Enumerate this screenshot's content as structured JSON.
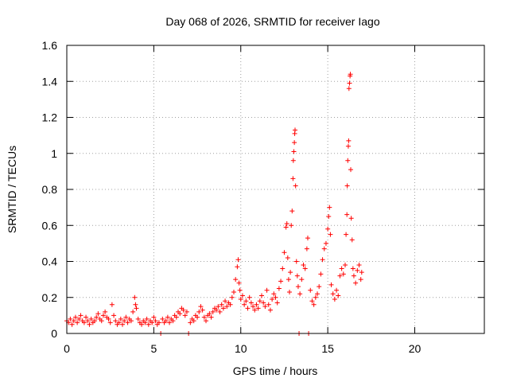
{
  "chart_data": {
    "type": "scatter",
    "title": "Day 068 of 2026, SRMTID for receiver Iago",
    "xlabel": "GPS time / hours",
    "ylabel": "SRMTID / TECUs",
    "xlim": [
      0,
      24
    ],
    "ylim": [
      0,
      1.6
    ],
    "xticks": [
      0,
      5,
      10,
      15,
      20
    ],
    "xtick_labels": [
      "0",
      "5",
      "10",
      "15",
      "20"
    ],
    "yticks": [
      0,
      0.2,
      0.4,
      0.6,
      0.8,
      1.0,
      1.2,
      1.4,
      1.6
    ],
    "ytick_labels": [
      "0",
      "0.2",
      "0.4",
      "0.6",
      "0.8",
      "1",
      "1.2",
      "1.4",
      "1.6"
    ],
    "grid": true,
    "marker": "+",
    "color": "#ff0000",
    "series": [
      {
        "name": "SRMTID",
        "points": [
          [
            0.0,
            0.07
          ],
          [
            0.1,
            0.06
          ],
          [
            0.2,
            0.08
          ],
          [
            0.3,
            0.05
          ],
          [
            0.4,
            0.07
          ],
          [
            0.5,
            0.09
          ],
          [
            0.6,
            0.06
          ],
          [
            0.7,
            0.08
          ],
          [
            0.8,
            0.1
          ],
          [
            0.9,
            0.07
          ],
          [
            1.0,
            0.06
          ],
          [
            1.1,
            0.09
          ],
          [
            1.2,
            0.07
          ],
          [
            1.3,
            0.05
          ],
          [
            1.4,
            0.08
          ],
          [
            1.5,
            0.06
          ],
          [
            1.6,
            0.07
          ],
          [
            1.7,
            0.09
          ],
          [
            1.8,
            0.11
          ],
          [
            1.9,
            0.08
          ],
          [
            2.0,
            0.07
          ],
          [
            2.1,
            0.1
          ],
          [
            2.2,
            0.12
          ],
          [
            2.3,
            0.09
          ],
          [
            2.4,
            0.08
          ],
          [
            2.5,
            0.06
          ],
          [
            2.6,
            0.16
          ],
          [
            2.7,
            0.1
          ],
          [
            2.8,
            0.07
          ],
          [
            2.9,
            0.05
          ],
          [
            3.0,
            0.06
          ],
          [
            3.1,
            0.08
          ],
          [
            3.2,
            0.05
          ],
          [
            3.3,
            0.07
          ],
          [
            3.4,
            0.09
          ],
          [
            3.5,
            0.06
          ],
          [
            3.6,
            0.08
          ],
          [
            3.7,
            0.07
          ],
          [
            3.8,
            0.12
          ],
          [
            3.9,
            0.2
          ],
          [
            3.95,
            0.16
          ],
          [
            4.0,
            0.14
          ],
          [
            4.1,
            0.08
          ],
          [
            4.2,
            0.06
          ],
          [
            4.3,
            0.05
          ],
          [
            4.4,
            0.07
          ],
          [
            4.5,
            0.06
          ],
          [
            4.6,
            0.08
          ],
          [
            4.7,
            0.05
          ],
          [
            4.8,
            0.07
          ],
          [
            4.9,
            0.06
          ],
          [
            5.0,
            0.09
          ],
          [
            5.1,
            0.07
          ],
          [
            5.2,
            0.05
          ],
          [
            5.3,
            0.06
          ],
          [
            5.4,
            0.0
          ],
          [
            5.5,
            0.08
          ],
          [
            5.6,
            0.06
          ],
          [
            5.7,
            0.07
          ],
          [
            5.8,
            0.09
          ],
          [
            5.9,
            0.06
          ],
          [
            6.0,
            0.08
          ],
          [
            6.1,
            0.07
          ],
          [
            6.2,
            0.1
          ],
          [
            6.3,
            0.09
          ],
          [
            6.4,
            0.12
          ],
          [
            6.5,
            0.11
          ],
          [
            6.6,
            0.14
          ],
          [
            6.7,
            0.13
          ],
          [
            6.8,
            0.1
          ],
          [
            6.9,
            0.12
          ],
          [
            7.0,
            0.0
          ],
          [
            7.1,
            0.06
          ],
          [
            7.2,
            0.08
          ],
          [
            7.3,
            0.07
          ],
          [
            7.4,
            0.1
          ],
          [
            7.5,
            0.09
          ],
          [
            7.6,
            0.12
          ],
          [
            7.7,
            0.15
          ],
          [
            7.8,
            0.13
          ],
          [
            7.9,
            0.09
          ],
          [
            8.0,
            0.07
          ],
          [
            8.1,
            0.1
          ],
          [
            8.2,
            0.11
          ],
          [
            8.3,
            0.09
          ],
          [
            8.4,
            0.12
          ],
          [
            8.5,
            0.14
          ],
          [
            8.6,
            0.13
          ],
          [
            8.7,
            0.15
          ],
          [
            8.8,
            0.12
          ],
          [
            8.9,
            0.16
          ],
          [
            9.0,
            0.14
          ],
          [
            9.1,
            0.18
          ],
          [
            9.2,
            0.15
          ],
          [
            9.3,
            0.17
          ],
          [
            9.4,
            0.16
          ],
          [
            9.5,
            0.2
          ],
          [
            9.6,
            0.23
          ],
          [
            9.7,
            0.3
          ],
          [
            9.8,
            0.37
          ],
          [
            9.85,
            0.41
          ],
          [
            9.9,
            0.28
          ],
          [
            9.95,
            0.24
          ],
          [
            10.0,
            0.19
          ],
          [
            10.1,
            0.21
          ],
          [
            10.2,
            0.16
          ],
          [
            10.3,
            0.18
          ],
          [
            10.4,
            0.14
          ],
          [
            10.5,
            0.2
          ],
          [
            10.6,
            0.17
          ],
          [
            10.7,
            0.15
          ],
          [
            10.8,
            0.13
          ],
          [
            10.9,
            0.16
          ],
          [
            11.0,
            0.14
          ],
          [
            11.1,
            0.18
          ],
          [
            11.2,
            0.21
          ],
          [
            11.3,
            0.17
          ],
          [
            11.4,
            0.15
          ],
          [
            11.5,
            0.24
          ],
          [
            11.6,
            0.16
          ],
          [
            11.7,
            0.13
          ],
          [
            11.8,
            0.19
          ],
          [
            11.9,
            0.22
          ],
          [
            12.0,
            0.2
          ],
          [
            12.1,
            0.17
          ],
          [
            12.2,
            0.25
          ],
          [
            12.3,
            0.29
          ],
          [
            12.4,
            0.36
          ],
          [
            12.5,
            0.45
          ],
          [
            12.6,
            0.59
          ],
          [
            12.65,
            0.61
          ],
          [
            12.7,
            0.42
          ],
          [
            12.75,
            0.3
          ],
          [
            12.8,
            0.23
          ],
          [
            12.85,
            0.34
          ],
          [
            12.9,
            0.6
          ],
          [
            12.95,
            0.68
          ],
          [
            13.0,
            0.86
          ],
          [
            13.02,
            0.96
          ],
          [
            13.05,
            1.01
          ],
          [
            13.08,
            1.06
          ],
          [
            13.1,
            1.11
          ],
          [
            13.12,
            1.13
          ],
          [
            13.15,
            0.82
          ],
          [
            13.2,
            0.4
          ],
          [
            13.25,
            0.32
          ],
          [
            13.3,
            0.26
          ],
          [
            13.35,
            0.0
          ],
          [
            13.4,
            0.22
          ],
          [
            13.5,
            0.3
          ],
          [
            13.6,
            0.38
          ],
          [
            13.7,
            0.36
          ],
          [
            13.8,
            0.47
          ],
          [
            13.85,
            0.53
          ],
          [
            13.9,
            0.0
          ],
          [
            14.0,
            0.24
          ],
          [
            14.1,
            0.18
          ],
          [
            14.2,
            0.16
          ],
          [
            14.3,
            0.2
          ],
          [
            14.4,
            0.22
          ],
          [
            14.5,
            0.26
          ],
          [
            14.6,
            0.33
          ],
          [
            14.7,
            0.41
          ],
          [
            14.8,
            0.47
          ],
          [
            14.9,
            0.5
          ],
          [
            15.0,
            0.58
          ],
          [
            15.05,
            0.65
          ],
          [
            15.1,
            0.7
          ],
          [
            15.15,
            0.55
          ],
          [
            15.2,
            0.27
          ],
          [
            15.3,
            0.22
          ],
          [
            15.4,
            0.19
          ],
          [
            15.5,
            0.24
          ],
          [
            15.6,
            0.21
          ],
          [
            15.7,
            0.32
          ],
          [
            15.8,
            0.36
          ],
          [
            15.9,
            0.33
          ],
          [
            16.0,
            0.38
          ],
          [
            16.05,
            0.55
          ],
          [
            16.1,
            0.66
          ],
          [
            16.12,
            0.82
          ],
          [
            16.15,
            0.96
          ],
          [
            16.18,
            1.04
          ],
          [
            16.2,
            1.07
          ],
          [
            16.22,
            1.36
          ],
          [
            16.25,
            1.39
          ],
          [
            16.28,
            1.43
          ],
          [
            16.3,
            1.44
          ],
          [
            16.32,
            0.91
          ],
          [
            16.35,
            0.64
          ],
          [
            16.4,
            0.52
          ],
          [
            16.45,
            0.36
          ],
          [
            16.5,
            0.32
          ],
          [
            16.6,
            0.28
          ],
          [
            16.7,
            0.35
          ],
          [
            16.8,
            0.38
          ],
          [
            16.9,
            0.3
          ],
          [
            16.95,
            0.34
          ]
        ]
      }
    ]
  }
}
